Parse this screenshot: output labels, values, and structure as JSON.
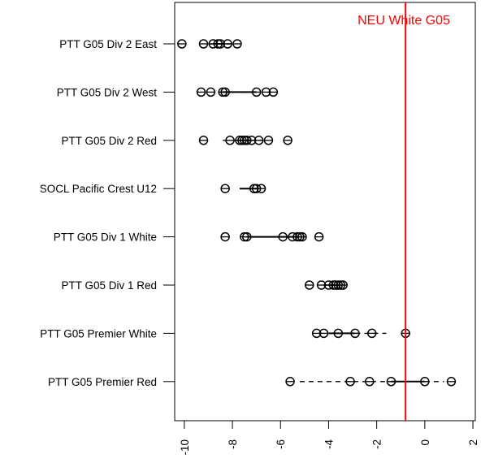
{
  "chart_data": {
    "type": "scatter",
    "title": "",
    "xlabel": "",
    "ylabel": "",
    "xlim": [
      -10.4,
      2.1
    ],
    "x_ticks": [
      -10,
      -8,
      -6,
      -4,
      -2,
      0,
      2
    ],
    "x_tick_labels": [
      "-10",
      "-8",
      "-6",
      "-4",
      "-2",
      "0",
      "2"
    ],
    "reference_line": {
      "x": -0.8,
      "label": "NEU White G05",
      "color": "#ff0000"
    },
    "categories": [
      "PTT G05 Div 2 East",
      "PTT G05 Div 2 West",
      "PTT G05 Div 2 Red",
      "SOCL Pacific Crest U12",
      "PTT G05 Div 1 White",
      "PTT G05 Div 1 Red",
      "PTT G05 Premier White",
      "PTT G05 Premier Red"
    ],
    "series": [
      {
        "points": [
          -10.1,
          -9.2,
          -8.8,
          -8.6,
          -8.5,
          -8.2,
          -7.8
        ],
        "whisker": [
          -9.0,
          -8.0
        ],
        "ci": [
          -8.8,
          -8.3
        ]
      },
      {
        "points": [
          -9.3,
          -8.9,
          -8.4,
          -8.3,
          -7.0,
          -6.6,
          -6.3
        ],
        "whisker": [
          -8.4,
          -7.0
        ],
        "ci": [
          -8.4,
          -7.0
        ]
      },
      {
        "points": [
          -9.2,
          -8.1,
          -7.7,
          -7.6,
          -7.5,
          -7.4,
          -7.2,
          -6.9,
          -6.5,
          -5.7
        ],
        "whisker": [
          -8.4,
          -6.6
        ],
        "ci": [
          -7.8,
          -7.2
        ]
      },
      {
        "points": [
          -8.3,
          -7.1,
          -7.0,
          -6.8
        ],
        "whisker": [
          -7.7,
          -6.9
        ],
        "ci": [
          -7.7,
          -6.9
        ]
      },
      {
        "points": [
          -8.3,
          -7.5,
          -7.4,
          -5.9,
          -5.5,
          -5.3,
          -5.2,
          -5.1,
          -4.4
        ],
        "whisker": [
          -7.4,
          -5.3
        ],
        "ci": [
          -7.4,
          -5.3
        ]
      },
      {
        "points": [
          -4.8,
          -4.3,
          -4.0,
          -3.8,
          -3.7,
          -3.6,
          -3.5,
          -3.4
        ],
        "whisker": [
          -4.2,
          -3.4
        ],
        "ci": [
          -4.0,
          -3.5
        ]
      },
      {
        "points": [
          -4.5,
          -4.2,
          -3.6,
          -2.9,
          -2.2,
          -0.8
        ],
        "whisker": [
          -4.0,
          -1.6
        ],
        "ci": [
          -4.0,
          -2.9
        ]
      },
      {
        "points": [
          -5.6,
          -3.1,
          -2.3,
          -1.4,
          0.0,
          1.1
        ],
        "whisker": [
          -5.2,
          0.8
        ],
        "ci": [
          -1.4,
          0.0
        ]
      }
    ]
  }
}
